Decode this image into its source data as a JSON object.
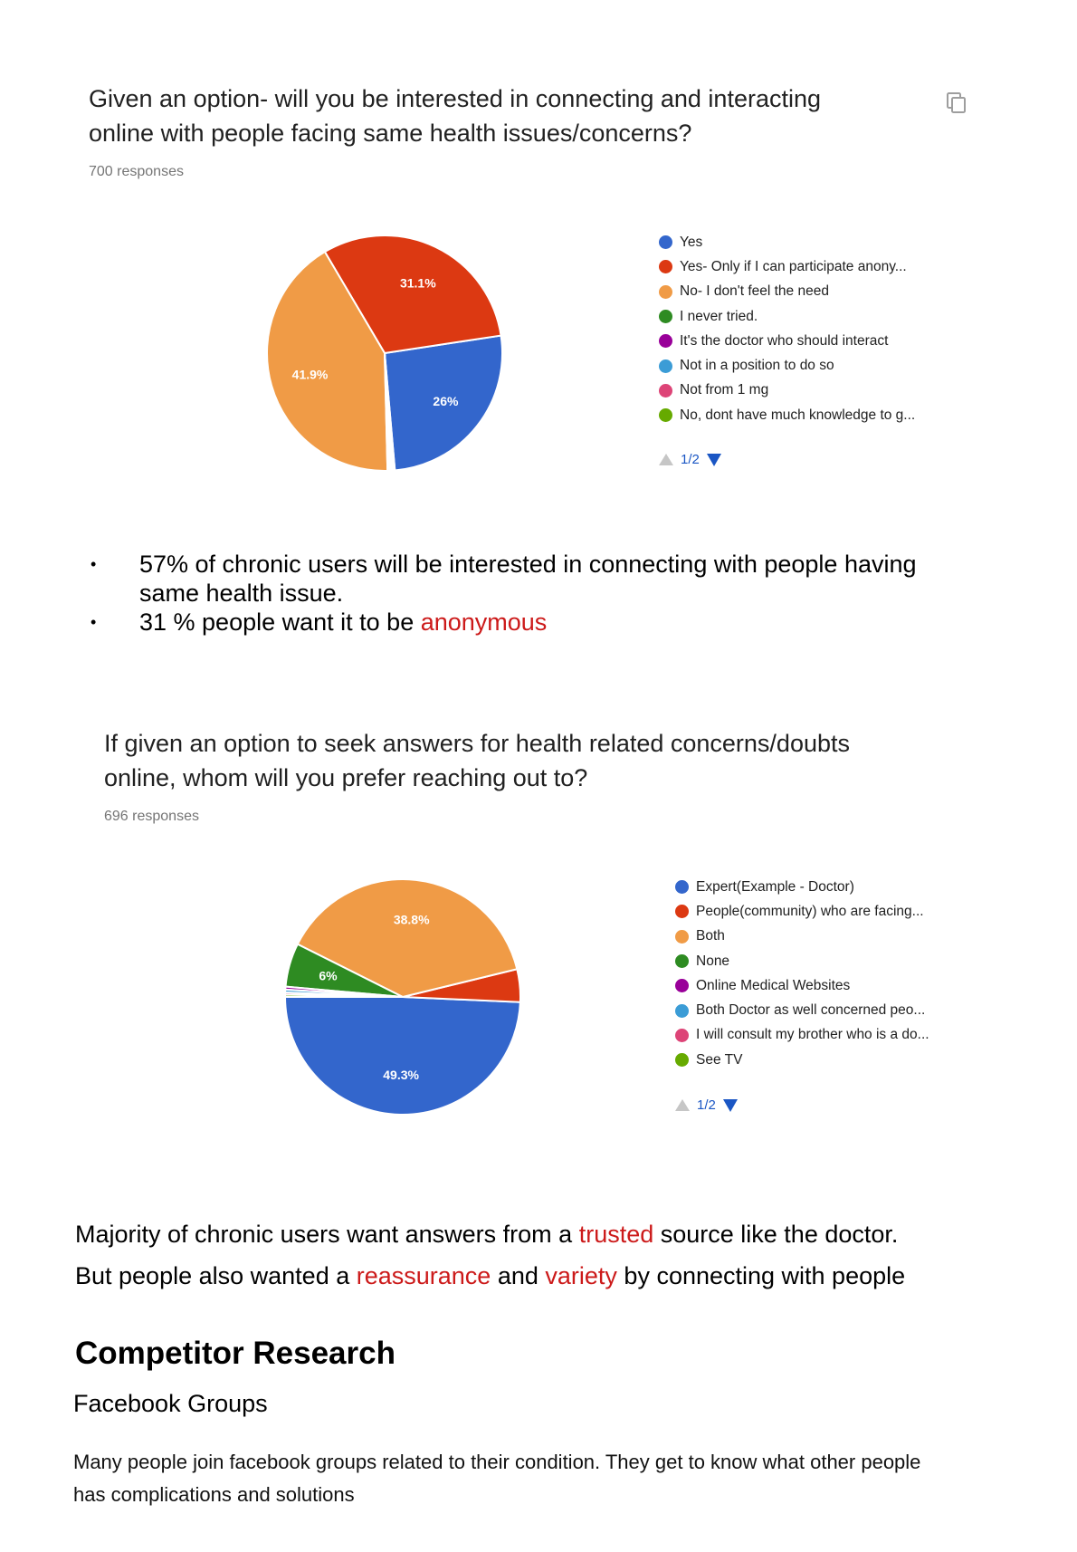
{
  "chart1": {
    "title_line1": "Given an option- will you be interested in connecting and interacting",
    "title_line2": "online with people facing same health issues/concerns?",
    "responses": "700 responses",
    "pager": "1/2",
    "icon": "copy-icon"
  },
  "chart2": {
    "title_line1": "If given an option to seek answers for health related concerns/doubts",
    "title_line2": "online, whom will you prefer reaching out to?",
    "responses": "696 responses",
    "pager": "1/2"
  },
  "chart_data": [
    {
      "type": "pie",
      "title": "Given an option- will you be interested in connecting and interacting online with people facing same health issues/concerns?",
      "legend_position": "right",
      "slices": [
        {
          "label": "Yes",
          "value": 26,
          "display": "26%",
          "color": "#3366cc"
        },
        {
          "label": "Yes- Only if I can participate anony...",
          "value": 31.1,
          "display": "31.1%",
          "color": "#dc3912"
        },
        {
          "label": "No- I don't feel the need",
          "value": 41.9,
          "display": "41.9%",
          "color": "#f09b46"
        },
        {
          "label": "I never tried.",
          "value": 0.25,
          "display": "",
          "color": "#2e8b22"
        },
        {
          "label": "It's the doctor who should interact",
          "value": 0.25,
          "display": "",
          "color": "#990099"
        },
        {
          "label": "Not in a position to do so",
          "value": 0.2,
          "display": "",
          "color": "#3b9cd6"
        },
        {
          "label": "Not from 1 mg",
          "value": 0.15,
          "display": "",
          "color": "#dd4477"
        },
        {
          "label": "No, dont have much knowledge to g...",
          "value": 0.15,
          "display": "",
          "color": "#66aa00"
        }
      ]
    },
    {
      "type": "pie",
      "title": "If given an option to seek answers for health related concerns/doubts online, whom will you prefer reaching out to?",
      "legend_position": "right",
      "slices": [
        {
          "label": "Expert(Example - Doctor)",
          "value": 49.3,
          "display": "49.3%",
          "color": "#3366cc"
        },
        {
          "label": "People(community) who are facing...",
          "value": 4.5,
          "display": "",
          "color": "#dc3912"
        },
        {
          "label": "Both",
          "value": 38.8,
          "display": "38.8%",
          "color": "#f09b46"
        },
        {
          "label": "None",
          "value": 6,
          "display": "6%",
          "color": "#2e8b22"
        },
        {
          "label": "Online Medical Websites",
          "value": 0.4,
          "display": "",
          "color": "#990099"
        },
        {
          "label": "Both Doctor as well concerned peo...",
          "value": 0.4,
          "display": "",
          "color": "#3b9cd6"
        },
        {
          "label": "I will consult my brother who is a do...",
          "value": 0.3,
          "display": "",
          "color": "#dd4477"
        },
        {
          "label": "See TV",
          "value": 0.3,
          "display": "",
          "color": "#66aa00"
        }
      ]
    }
  ],
  "bullets": {
    "b1_line1": "57% of chronic users will be interested in connecting with people having",
    "b1_line2": "same health issue.",
    "b2_text": "31 % people want it to be ",
    "b2_highlight": "anonymous",
    "bullet_char": "•"
  },
  "summary": {
    "l1_a": "Majority of chronic users want answers from a ",
    "l1_b": "trusted",
    "l1_c": " source like the doctor.",
    "l2_a": "But people also wanted a ",
    "l2_b": "reassurance",
    "l2_c": " and ",
    "l2_d": "variety",
    "l2_e": " by connecting with people"
  },
  "competitor": {
    "heading": "Competitor Research",
    "subheading": "Facebook Groups",
    "paragraph_l1": "Many people join facebook groups related to their condition. They get to know what other people",
    "paragraph_l2": "has complications and solutions"
  }
}
